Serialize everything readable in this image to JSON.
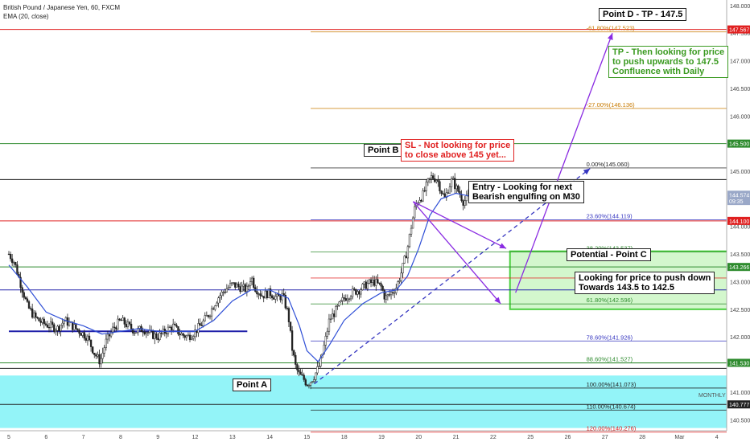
{
  "header": {
    "symbol_line": "British Pound / Japanese Yen, 60, FXCM",
    "indicator_line": "EMA (20, close)"
  },
  "annotations": {
    "point_d": "Point D - TP - 147.5",
    "tp_note": [
      "TP - Then looking for price",
      "to push upwards to 147.5",
      "Confluence with Daily"
    ],
    "point_b": "Point B",
    "sl_note": [
      "SL - Not looking for price",
      "to close above 145 yet..."
    ],
    "entry_note": [
      "Entry - Looking for next",
      "Bearish engulfing on M30"
    ],
    "potential_c": "Potential - Point C",
    "push_down_note": [
      "Looking for price to push down",
      "Towards 143.5 to 142.5"
    ],
    "point_a": "Point A",
    "monthly": "MONTHLY"
  },
  "colors": {
    "candle": "#222222",
    "ema": "#2f4fd6",
    "arrow": "#8a2be2",
    "zone_monthly": "#6ff0f5",
    "zone_c": "#c8f5c0",
    "zone_c_border": "#4ccf40",
    "fib_label": "#b05a00",
    "tp_text": "#3a9a20",
    "sl_text": "#e02020"
  },
  "chart_data": {
    "type": "candlestick",
    "symbol": "GBPJPY",
    "timeframe": "60",
    "x_tick_labels": [
      "5",
      "6",
      "7",
      "8",
      "9",
      "12",
      "13",
      "14",
      "15",
      "18",
      "19",
      "20",
      "21",
      "22",
      "25",
      "26",
      "27",
      "28",
      "Mar",
      "4"
    ],
    "ylim": [
      140.3,
      148.1
    ],
    "y_tick_labels": [
      "140.500",
      "141.000",
      "141.500",
      "142.000",
      "142.500",
      "143.000",
      "143.500",
      "144.000",
      "144.500",
      "145.000",
      "145.500",
      "146.000",
      "146.500",
      "147.000",
      "147.500",
      "148.000"
    ],
    "price_badges": [
      {
        "label": "147.567",
        "value": 147.567,
        "color": "#e02020"
      },
      {
        "label": "145.500",
        "value": 145.5,
        "color": "#2e8b2e"
      },
      {
        "label": "144.574",
        "value": 144.574,
        "color": "#9aa8c8"
      },
      {
        "label": "09:35",
        "value": 144.46,
        "color": "#9aa8c8"
      },
      {
        "label": "144.100",
        "value": 144.1,
        "color": "#e02020"
      },
      {
        "label": "143.266",
        "value": 143.266,
        "color": "#2e8b2e"
      },
      {
        "label": "141.530",
        "value": 141.53,
        "color": "#2e8b2e"
      },
      {
        "label": "140.777",
        "value": 140.777,
        "color": "#222222"
      }
    ],
    "fib_levels": [
      {
        "label": "-61.80%(147.523)",
        "value": 147.523,
        "color": "#c87a00"
      },
      {
        "label": "-27.00%(146.136)",
        "value": 146.136,
        "color": "#c87a00"
      },
      {
        "label": "0.00%(145.060)",
        "value": 145.06,
        "color": "#222222"
      },
      {
        "label": "23.60%(144.119)",
        "value": 144.119,
        "color": "#3535c0"
      },
      {
        "label": "38.20%(143.537)",
        "value": 143.537,
        "color": "#2e8b2e"
      },
      {
        "label": "50.00%(143.066)",
        "value": 143.066,
        "color": "#e02020"
      },
      {
        "label": "61.80%(142.596)",
        "value": 142.596,
        "color": "#2e8b2e"
      },
      {
        "label": "78.60%(141.926)",
        "value": 141.926,
        "color": "#3535c0"
      },
      {
        "label": "88.60%(141.527)",
        "value": 141.527,
        "color": "#2e8b2e"
      },
      {
        "label": "100.00%(141.073)",
        "value": 141.073,
        "color": "#222222"
      },
      {
        "label": "110.00%(140.674)",
        "value": 140.674,
        "color": "#222222"
      },
      {
        "label": "120.00%(140.276)",
        "value": 140.276,
        "color": "#e02020"
      }
    ],
    "horizontal_lines": [
      {
        "value": 147.567,
        "color": "#e02020"
      },
      {
        "value": 145.5,
        "color": "#2e8b2e"
      },
      {
        "value": 144.85,
        "color": "#222222"
      },
      {
        "value": 144.1,
        "color": "#e02020"
      },
      {
        "value": 143.266,
        "color": "#2e8b2e"
      },
      {
        "value": 142.85,
        "color": "#2222aa"
      },
      {
        "value": 141.53,
        "color": "#2e8b2e"
      },
      {
        "value": 141.43,
        "color": "#222222"
      },
      {
        "value": 140.777,
        "color": "#222222"
      }
    ],
    "support_line": {
      "value": 142.1,
      "x_from": 0,
      "x_to": 6.4
    },
    "zones": [
      {
        "name": "monthly",
        "from": 140.35,
        "to": 141.3
      },
      {
        "name": "point_c",
        "from": 142.5,
        "to": 143.55
      }
    ],
    "price_path": [
      [
        0,
        143.5
      ],
      [
        0.15,
        143.35
      ],
      [
        0.3,
        143.0
      ],
      [
        0.5,
        142.55
      ],
      [
        0.7,
        142.35
      ],
      [
        0.9,
        142.25
      ],
      [
        1.1,
        142.2
      ],
      [
        1.3,
        142.15
      ],
      [
        1.5,
        142.3
      ],
      [
        1.7,
        142.2
      ],
      [
        1.9,
        142.1
      ],
      [
        2.1,
        142.0
      ],
      [
        2.3,
        141.7
      ],
      [
        2.45,
        141.55
      ],
      [
        2.6,
        141.9
      ],
      [
        2.8,
        142.15
      ],
      [
        3.0,
        142.3
      ],
      [
        3.2,
        142.2
      ],
      [
        3.4,
        142.1
      ],
      [
        3.6,
        142.15
      ],
      [
        3.8,
        142.05
      ],
      [
        4.0,
        142.0
      ],
      [
        4.2,
        142.1
      ],
      [
        4.4,
        142.2
      ],
      [
        4.6,
        142.05
      ],
      [
        4.8,
        142.0
      ],
      [
        5.0,
        142.1
      ],
      [
        5.2,
        142.25
      ],
      [
        5.4,
        142.45
      ],
      [
        5.6,
        142.7
      ],
      [
        5.8,
        142.85
      ],
      [
        6.0,
        142.95
      ],
      [
        6.2,
        142.9
      ],
      [
        6.4,
        142.85
      ],
      [
        6.5,
        143.1
      ],
      [
        6.6,
        142.9
      ],
      [
        6.8,
        142.75
      ],
      [
        7.0,
        142.8
      ],
      [
        7.2,
        142.7
      ],
      [
        7.35,
        142.75
      ],
      [
        7.5,
        142.4
      ],
      [
        7.6,
        141.8
      ],
      [
        7.7,
        141.45
      ],
      [
        7.8,
        141.3
      ],
      [
        7.9,
        141.25
      ],
      [
        8.0,
        141.15
      ],
      [
        8.1,
        141.2
      ],
      [
        8.2,
        141.3
      ],
      [
        8.35,
        141.5
      ],
      [
        8.5,
        141.95
      ],
      [
        8.6,
        142.3
      ],
      [
        8.8,
        142.5
      ],
      [
        9.0,
        142.7
      ],
      [
        9.2,
        142.8
      ],
      [
        9.4,
        142.85
      ],
      [
        9.6,
        142.95
      ],
      [
        9.8,
        143.0
      ],
      [
        10.0,
        142.9
      ],
      [
        10.1,
        142.7
      ],
      [
        10.2,
        142.75
      ],
      [
        10.4,
        142.9
      ],
      [
        10.55,
        143.2
      ],
      [
        10.7,
        143.6
      ],
      [
        10.8,
        144.0
      ],
      [
        10.9,
        144.35
      ],
      [
        11.0,
        144.5
      ],
      [
        11.1,
        144.55
      ],
      [
        11.25,
        144.8
      ],
      [
        11.35,
        144.9
      ],
      [
        11.5,
        144.85
      ],
      [
        11.6,
        144.65
      ],
      [
        11.7,
        144.5
      ],
      [
        11.8,
        144.7
      ],
      [
        11.9,
        144.85
      ],
      [
        12.0,
        144.7
      ],
      [
        12.1,
        144.6
      ],
      [
        12.2,
        144.45
      ],
      [
        12.3,
        144.5
      ],
      [
        12.35,
        144.57
      ]
    ],
    "ema_path": [
      [
        0,
        143.3
      ],
      [
        0.5,
        142.9
      ],
      [
        1,
        142.45
      ],
      [
        1.5,
        142.3
      ],
      [
        2,
        142.2
      ],
      [
        2.5,
        142.05
      ],
      [
        3,
        142.1
      ],
      [
        3.5,
        142.15
      ],
      [
        4,
        142.1
      ],
      [
        4.5,
        142.1
      ],
      [
        5,
        142.1
      ],
      [
        5.5,
        142.3
      ],
      [
        6,
        142.65
      ],
      [
        6.5,
        142.85
      ],
      [
        7,
        142.85
      ],
      [
        7.5,
        142.7
      ],
      [
        7.8,
        142.2
      ],
      [
        8.0,
        141.75
      ],
      [
        8.3,
        141.55
      ],
      [
        8.6,
        141.85
      ],
      [
        9,
        142.3
      ],
      [
        9.5,
        142.6
      ],
      [
        10,
        142.8
      ],
      [
        10.4,
        142.85
      ],
      [
        10.7,
        143.1
      ],
      [
        11,
        143.6
      ],
      [
        11.3,
        144.2
      ],
      [
        11.6,
        144.5
      ],
      [
        12,
        144.6
      ],
      [
        12.35,
        144.55
      ]
    ],
    "arrows": [
      {
        "from": [
          8.2,
          141.15
        ],
        "to": [
          15.6,
          145.05
        ],
        "dashed": true
      },
      {
        "from": [
          10.85,
          144.45
        ],
        "to": [
          13.35,
          143.6
        ],
        "dashed": false
      },
      {
        "from": [
          10.85,
          144.45
        ],
        "to": [
          13.2,
          142.6
        ],
        "dashed": false
      },
      {
        "from": [
          13.6,
          142.8
        ],
        "to": [
          16.2,
          147.5
        ],
        "dashed": false
      }
    ]
  }
}
